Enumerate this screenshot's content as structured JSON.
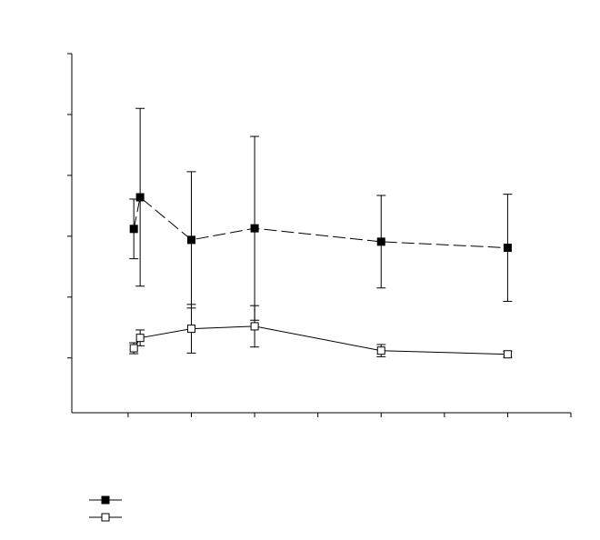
{
  "chart_data": {
    "type": "line",
    "x": [
      1.09,
      1.19,
      2,
      3,
      5,
      7
    ],
    "xlim": [
      0.11,
      8
    ],
    "xticks": [
      1,
      2,
      3,
      4,
      5,
      6,
      7,
      8
    ],
    "ylim": [
      0.1,
      6
    ],
    "yticks": [
      1,
      2,
      3,
      4,
      5,
      6
    ],
    "grid": false,
    "legend": "bottom-left",
    "series": [
      {
        "color": "#000000",
        "marker_fill": "#000000",
        "line_style": "dashed",
        "values": [
          3.12,
          3.64,
          2.94,
          3.13,
          2.91,
          2.81
        ],
        "errors": [
          0.49,
          1.46,
          1.12,
          1.51,
          0.76,
          0.88
        ]
      },
      {
        "color": "#000000",
        "marker_fill": "#ffffff",
        "line_style": "solid",
        "values": [
          1.16,
          1.33,
          1.48,
          1.52,
          1.12,
          1.06
        ],
        "errors": [
          0.09,
          0.13,
          0.4,
          0.34,
          0.1,
          0.05
        ]
      }
    ]
  }
}
